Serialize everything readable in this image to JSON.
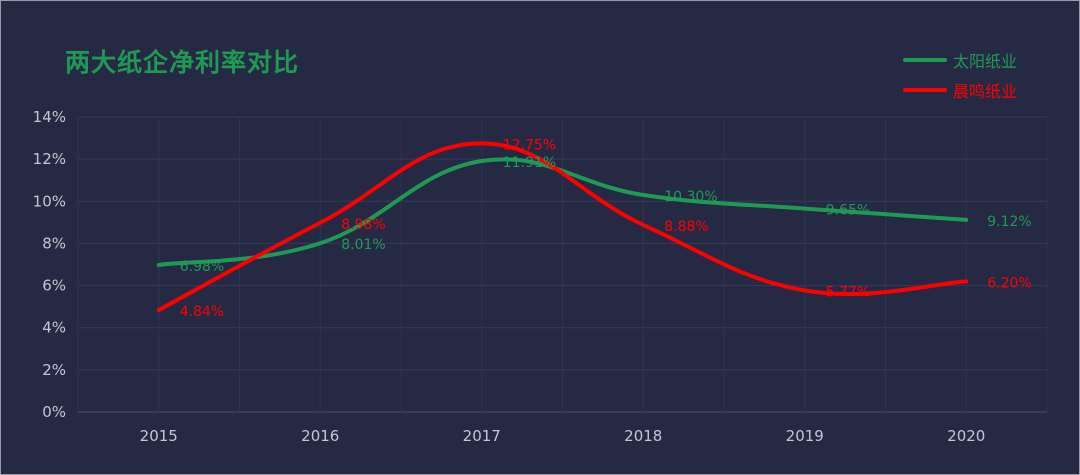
{
  "chart_data": {
    "type": "line",
    "title": "两大纸企净利率对比",
    "categories": [
      "2015",
      "2016",
      "2017",
      "2018",
      "2019",
      "2020"
    ],
    "series": [
      {
        "name": "太阳纸业",
        "color": "#1f9a55",
        "values": [
          6.98,
          8.01,
          11.91,
          10.3,
          9.65,
          9.12
        ],
        "labels": [
          "6.98%",
          "8.01%",
          "11.91%",
          "10.30%",
          "9.65%",
          "9.12%"
        ]
      },
      {
        "name": "晨鸣纸业",
        "color": "#ff0000",
        "values": [
          4.84,
          8.98,
          12.75,
          8.88,
          5.77,
          6.2
        ],
        "labels": [
          "4.84%",
          "8.98%",
          "12.75%",
          "8.88%",
          "5.77%",
          "6.20%"
        ]
      }
    ],
    "ylim": [
      0,
      14
    ],
    "yticks": [
      "0%",
      "2%",
      "4%",
      "6%",
      "8%",
      "10%",
      "12%",
      "14%"
    ],
    "grid": true,
    "legend_position": "top-right",
    "smooth": true
  }
}
